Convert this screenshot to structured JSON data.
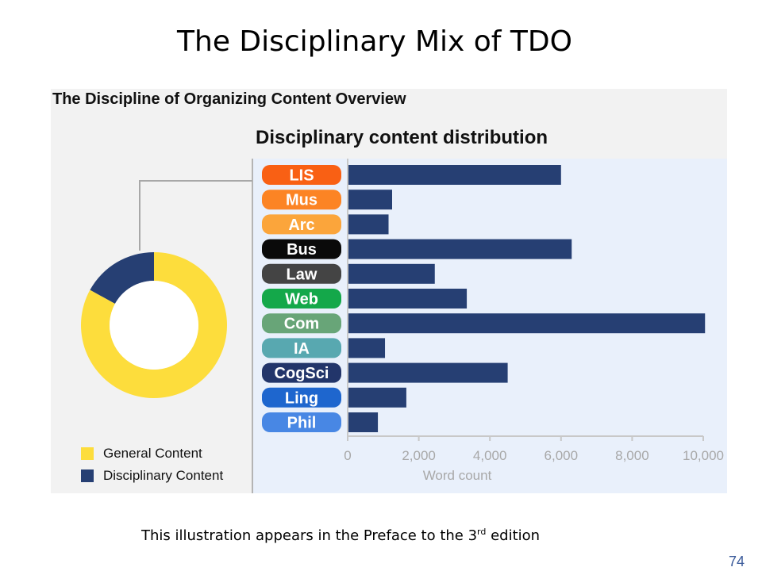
{
  "slide": {
    "title": "The Disciplinary Mix of TDO",
    "caption_before": "This illustration appears in the Preface to the 3",
    "caption_sup": "rd",
    "caption_after": " edition",
    "page_number": "74"
  },
  "figure": {
    "title": "The Discipline of Organizing Content Overview"
  },
  "colors": {
    "bar": "#263f73",
    "general": "#fddd3c",
    "disciplinary": "#263f73",
    "axis": "#c8c8c8",
    "tick_text": "#a8a8a8",
    "connector": "#a8a8a8"
  },
  "chart_data": [
    {
      "type": "pie",
      "style": "donut",
      "slices": [
        {
          "label": "General Content",
          "value": 0.83,
          "color": "#fddd3c"
        },
        {
          "label": "Disciplinary Content",
          "value": 0.17,
          "color": "#263f73"
        }
      ],
      "legend_position": "bottom-left"
    },
    {
      "type": "bar",
      "orientation": "horizontal",
      "title": "Disciplinary content distribution",
      "xlabel": "Word count",
      "xlim": [
        0,
        10000
      ],
      "xticks": [
        0,
        2000,
        4000,
        6000,
        8000,
        10000
      ],
      "xtick_labels": [
        "0",
        "2,000",
        "4,000",
        "6,000",
        "8,000",
        "10,000"
      ],
      "categories": [
        "LIS",
        "Mus",
        "Arc",
        "Bus",
        "Law",
        "Web",
        "Com",
        "IA",
        "CogSci",
        "Ling",
        "Phil"
      ],
      "category_colors": [
        "#f96014",
        "#fc8424",
        "#fba53b",
        "#0a0a0a",
        "#444444",
        "#14a84a",
        "#68a578",
        "#58a8b0",
        "#22356a",
        "#1e66ce",
        "#4887e4"
      ],
      "values": [
        6000,
        1250,
        1150,
        6300,
        2450,
        3350,
        10050,
        1050,
        4500,
        1650,
        850
      ],
      "grid": false
    }
  ]
}
